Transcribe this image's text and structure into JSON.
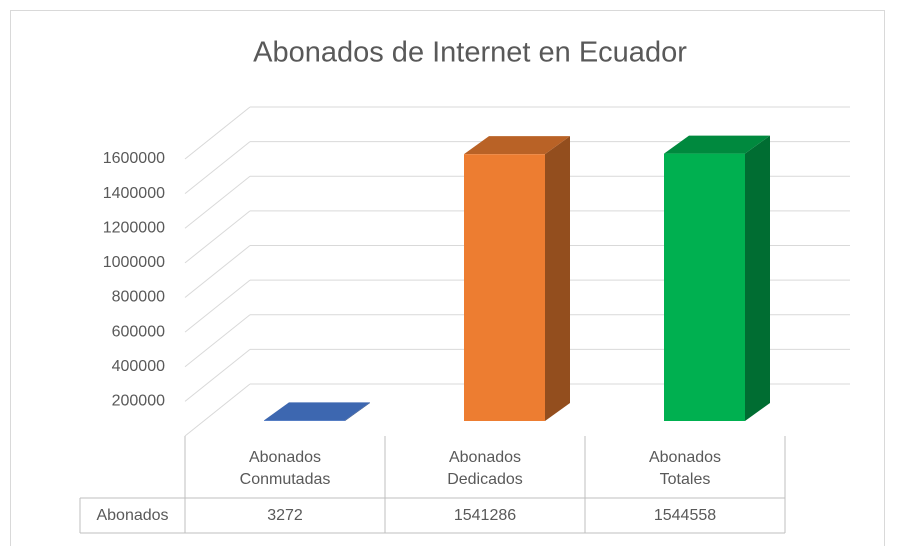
{
  "chart_data": {
    "type": "bar3d",
    "title": "Abonados de Internet en Ecuador",
    "categories": [
      "Abonados Conmutadas",
      "Abonados Dedicados",
      "Abonados Totales"
    ],
    "series": [
      {
        "name": "Abonados",
        "values": [
          3272,
          1541286,
          1544558
        ]
      }
    ],
    "colors": [
      "#4472c4",
      "#ed7d31",
      "#00b050"
    ],
    "ylim": [
      0,
      1600000
    ],
    "yticks": [
      200000,
      400000,
      600000,
      800000,
      1000000,
      1200000,
      1400000,
      1600000
    ],
    "grid": true
  }
}
